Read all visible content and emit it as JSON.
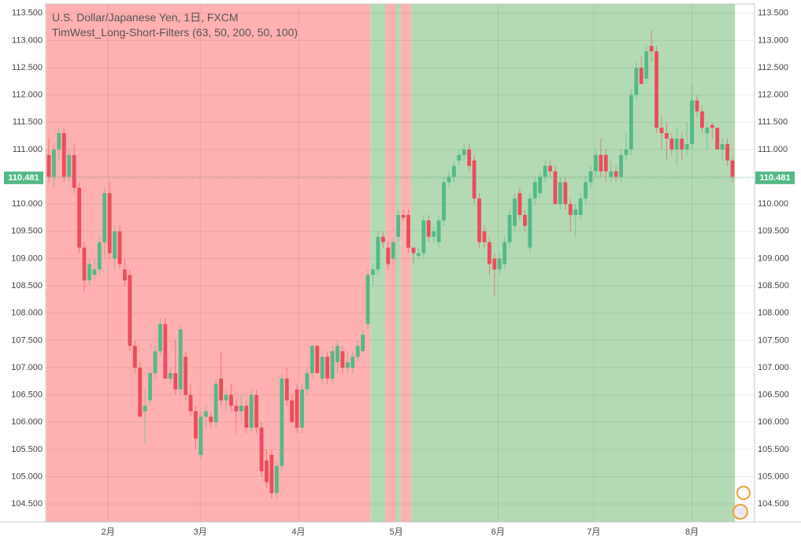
{
  "chart_data": {
    "type": "candlestick",
    "title": "U.S. Dollar/Japanese Yen, 1日, FXCM",
    "subtitle": "TimWest_Long-Short-Filters (63, 50, 200, 50, 100)",
    "up_color": "#53b987",
    "down_color": "#eb4d5c",
    "ylim": [
      104.17,
      113.67
    ],
    "yticks": [
      {
        "value": 104.5,
        "label": "104.500"
      },
      {
        "value": 105,
        "label": "105.000"
      },
      {
        "value": 105.5,
        "label": "105.500"
      },
      {
        "value": 106,
        "label": "106.000"
      },
      {
        "value": 106.5,
        "label": "106.500"
      },
      {
        "value": 107,
        "label": "107.000"
      },
      {
        "value": 107.5,
        "label": "107.500"
      },
      {
        "value": 108,
        "label": "108.000"
      },
      {
        "value": 108.5,
        "label": "108.500"
      },
      {
        "value": 109,
        "label": "109.000"
      },
      {
        "value": 109.5,
        "label": "109.500"
      },
      {
        "value": 110,
        "label": "110.000"
      },
      {
        "value": 110.5,
        "label": "110.500"
      },
      {
        "value": 111,
        "label": "111.000"
      },
      {
        "value": 111.5,
        "label": "111.500"
      },
      {
        "value": 112,
        "label": "112.000"
      },
      {
        "value": 112.5,
        "label": "112.500"
      },
      {
        "value": 113,
        "label": "113.000"
      },
      {
        "value": 113.5,
        "label": "113.500"
      }
    ],
    "xticks": [
      {
        "value": 11.7,
        "label": "2月"
      },
      {
        "value": 29.9,
        "label": "3月"
      },
      {
        "value": 49.3,
        "label": "4月"
      },
      {
        "value": 68.6,
        "label": "5月"
      },
      {
        "value": 88.7,
        "label": "6月"
      },
      {
        "value": 107.6,
        "label": "7月"
      },
      {
        "value": 127.0,
        "label": "8月"
      }
    ],
    "grid": true,
    "last_price": 110.481,
    "last_price_color": "#53b987",
    "zones": [
      {
        "from": 0,
        "to": 63,
        "color": "#ffb0b0"
      },
      {
        "from": 64,
        "to": 66,
        "color": "#b3dab3"
      },
      {
        "from": 67,
        "to": 68,
        "color": "#ffb0b0"
      },
      {
        "from": 69,
        "to": 69,
        "color": "#b3dab3"
      },
      {
        "from": 70,
        "to": 71,
        "color": "#ffb0b0"
      },
      {
        "from": 72,
        "to": 135,
        "color": "#b3dab3"
      }
    ],
    "candles": [
      [
        110.9,
        111.2,
        110.4,
        110.5
      ],
      [
        110.5,
        111.1,
        110.3,
        111.0
      ],
      [
        111.0,
        111.4,
        110.8,
        111.3
      ],
      [
        111.3,
        111.4,
        110.4,
        110.5
      ],
      [
        110.5,
        111.0,
        110.4,
        110.9
      ],
      [
        110.9,
        111.1,
        110.2,
        110.3
      ],
      [
        110.3,
        110.4,
        109.1,
        109.2
      ],
      [
        109.2,
        109.3,
        108.4,
        108.6
      ],
      [
        108.6,
        109.0,
        108.5,
        108.9
      ],
      [
        108.7,
        109.0,
        108.6,
        108.8
      ],
      [
        108.8,
        109.4,
        108.7,
        109.3
      ],
      [
        109.3,
        110.3,
        109.0,
        110.2
      ],
      [
        110.2,
        110.4,
        109.0,
        109.1
      ],
      [
        109.0,
        109.6,
        108.8,
        109.5
      ],
      [
        109.5,
        109.6,
        108.8,
        108.9
      ],
      [
        108.8,
        109.0,
        108.5,
        108.6
      ],
      [
        108.7,
        108.8,
        107.3,
        107.4
      ],
      [
        107.4,
        107.5,
        106.9,
        107.0
      ],
      [
        107.0,
        107.1,
        106.1,
        106.1
      ],
      [
        106.2,
        106.6,
        105.6,
        106.3
      ],
      [
        106.4,
        106.9,
        106.3,
        106.9
      ],
      [
        106.9,
        107.4,
        106.8,
        107.3
      ],
      [
        107.3,
        107.9,
        107.2,
        107.8
      ],
      [
        107.8,
        107.9,
        106.8,
        106.8
      ],
      [
        106.8,
        107.0,
        106.7,
        106.9
      ],
      [
        106.9,
        107.5,
        106.5,
        106.6
      ],
      [
        106.6,
        107.8,
        106.5,
        107.7
      ],
      [
        107.2,
        107.3,
        106.4,
        106.5
      ],
      [
        106.5,
        106.7,
        106.1,
        106.2
      ],
      [
        106.2,
        106.3,
        105.5,
        105.7
      ],
      [
        105.4,
        106.2,
        105.3,
        106.1
      ],
      [
        106.1,
        106.3,
        105.9,
        106.2
      ],
      [
        106.1,
        106.2,
        105.9,
        106.0
      ],
      [
        106.0,
        106.8,
        105.9,
        106.7
      ],
      [
        106.8,
        107.3,
        106.3,
        106.4
      ],
      [
        106.4,
        106.6,
        106.2,
        106.5
      ],
      [
        106.5,
        106.7,
        106.2,
        106.3
      ],
      [
        106.3,
        106.4,
        105.8,
        106.2
      ],
      [
        106.2,
        106.5,
        106.0,
        106.3
      ],
      [
        106.3,
        106.4,
        105.8,
        105.9
      ],
      [
        105.9,
        106.6,
        105.8,
        106.5
      ],
      [
        106.5,
        106.6,
        105.8,
        105.9
      ],
      [
        105.9,
        106.0,
        105.0,
        105.1
      ],
      [
        105.3,
        105.5,
        104.8,
        104.9
      ],
      [
        105.4,
        105.5,
        104.6,
        104.7
      ],
      [
        104.7,
        105.3,
        104.6,
        105.2
      ],
      [
        105.2,
        106.9,
        105.1,
        106.8
      ],
      [
        106.8,
        107.0,
        106.3,
        106.4
      ],
      [
        106.4,
        106.5,
        106.0,
        106.0
      ],
      [
        106.6,
        106.7,
        105.8,
        105.9
      ],
      [
        105.9,
        106.7,
        105.8,
        106.6
      ],
      [
        106.6,
        107.0,
        106.5,
        106.9
      ],
      [
        106.9,
        107.4,
        106.8,
        107.4
      ],
      [
        107.4,
        107.4,
        106.9,
        106.9
      ],
      [
        106.8,
        107.3,
        106.7,
        107.2
      ],
      [
        107.2,
        107.3,
        106.7,
        106.8
      ],
      [
        106.8,
        107.4,
        106.7,
        107.3
      ],
      [
        107.1,
        107.5,
        106.9,
        107.4
      ],
      [
        107.3,
        107.4,
        106.9,
        107.0
      ],
      [
        107.0,
        107.3,
        106.9,
        107.1
      ],
      [
        107.0,
        107.3,
        106.9,
        107.2
      ],
      [
        107.2,
        107.5,
        107.1,
        107.4
      ],
      [
        107.3,
        107.7,
        107.3,
        107.6
      ],
      [
        107.8,
        108.8,
        107.7,
        108.7
      ],
      [
        108.7,
        108.9,
        108.5,
        108.8
      ],
      [
        108.8,
        109.5,
        108.7,
        109.4
      ],
      [
        109.4,
        109.5,
        109.2,
        109.3
      ],
      [
        109.2,
        109.3,
        108.8,
        108.9
      ],
      [
        109.0,
        109.4,
        108.9,
        109.3
      ],
      [
        109.4,
        109.9,
        109.3,
        109.8
      ],
      [
        109.8,
        109.9,
        109.7,
        109.75
      ],
      [
        109.8,
        109.9,
        109.1,
        109.2
      ],
      [
        109.2,
        109.2,
        108.9,
        109.1
      ],
      [
        109.05,
        109.2,
        109.0,
        109.1
      ],
      [
        109.1,
        109.8,
        109.0,
        109.7
      ],
      [
        109.7,
        109.8,
        109.3,
        109.4
      ],
      [
        109.4,
        109.6,
        109.3,
        109.5
      ],
      [
        109.3,
        109.8,
        109.2,
        109.7
      ],
      [
        109.7,
        110.5,
        109.6,
        110.4
      ],
      [
        110.4,
        110.6,
        110.3,
        110.5
      ],
      [
        110.5,
        110.8,
        110.4,
        110.7
      ],
      [
        110.8,
        111.0,
        110.7,
        110.9
      ],
      [
        110.9,
        111.1,
        110.8,
        111.0
      ],
      [
        111.0,
        111.1,
        110.6,
        110.7
      ],
      [
        110.8,
        110.9,
        110.0,
        110.1
      ],
      [
        110.1,
        110.2,
        109.2,
        109.3
      ],
      [
        109.5,
        109.6,
        109.2,
        109.3
      ],
      [
        109.3,
        109.4,
        108.7,
        108.9
      ],
      [
        109.0,
        109.1,
        108.3,
        108.8
      ],
      [
        108.8,
        109.1,
        108.7,
        109.0
      ],
      [
        108.9,
        109.4,
        108.8,
        109.3
      ],
      [
        109.3,
        109.9,
        109.2,
        109.8
      ],
      [
        109.6,
        110.2,
        109.5,
        110.1
      ],
      [
        110.2,
        110.3,
        109.7,
        109.8
      ],
      [
        109.8,
        109.9,
        109.5,
        109.6
      ],
      [
        109.2,
        110.2,
        109.1,
        110.1
      ],
      [
        110.1,
        110.5,
        110.0,
        110.4
      ],
      [
        110.2,
        110.6,
        110.1,
        110.5
      ],
      [
        110.5,
        110.8,
        110.4,
        110.7
      ],
      [
        110.7,
        110.8,
        110.5,
        110.6
      ],
      [
        110.6,
        110.7,
        110.0,
        110.0
      ],
      [
        110.0,
        110.5,
        109.9,
        110.4
      ],
      [
        110.4,
        110.5,
        109.9,
        110.0
      ],
      [
        110.0,
        110.1,
        109.5,
        109.8
      ],
      [
        109.8,
        110.0,
        109.4,
        109.9
      ],
      [
        109.8,
        110.2,
        109.7,
        110.1
      ],
      [
        110.1,
        110.5,
        110.0,
        110.4
      ],
      [
        110.4,
        110.7,
        110.3,
        110.6
      ],
      [
        110.6,
        111.0,
        110.5,
        110.9
      ],
      [
        110.9,
        111.2,
        110.5,
        110.6
      ],
      [
        110.9,
        111.0,
        110.4,
        110.6
      ],
      [
        110.5,
        110.8,
        110.4,
        110.6
      ],
      [
        110.6,
        110.7,
        110.4,
        110.5
      ],
      [
        110.5,
        111.0,
        110.4,
        110.9
      ],
      [
        110.9,
        111.3,
        110.8,
        111.0
      ],
      [
        111.0,
        112.1,
        110.9,
        112.0
      ],
      [
        112.0,
        112.6,
        111.9,
        112.5
      ],
      [
        112.5,
        112.7,
        112.2,
        112.2
      ],
      [
        112.3,
        112.9,
        112.2,
        112.8
      ],
      [
        112.9,
        113.2,
        112.6,
        112.8
      ],
      [
        112.8,
        112.9,
        111.3,
        111.4
      ],
      [
        111.4,
        111.6,
        111.0,
        111.3
      ],
      [
        111.3,
        111.5,
        110.8,
        111.2
      ],
      [
        111.2,
        111.3,
        110.9,
        111.0
      ],
      [
        111.0,
        111.4,
        110.7,
        111.2
      ],
      [
        111.2,
        111.3,
        110.8,
        111.0
      ],
      [
        111.0,
        111.5,
        110.9,
        111.1
      ],
      [
        111.1,
        112.2,
        111.0,
        111.9
      ],
      [
        111.9,
        112.0,
        111.6,
        111.7
      ],
      [
        111.7,
        111.8,
        111.3,
        111.4
      ],
      [
        111.3,
        111.5,
        111.0,
        111.4
      ],
      [
        111.45,
        111.5,
        111.2,
        111.4
      ],
      [
        111.4,
        111.4,
        111.0,
        111.0
      ],
      [
        111.0,
        111.2,
        110.8,
        111.1
      ],
      [
        111.1,
        111.2,
        110.7,
        110.8
      ],
      [
        110.8,
        110.9,
        110.4,
        110.5
      ]
    ]
  }
}
